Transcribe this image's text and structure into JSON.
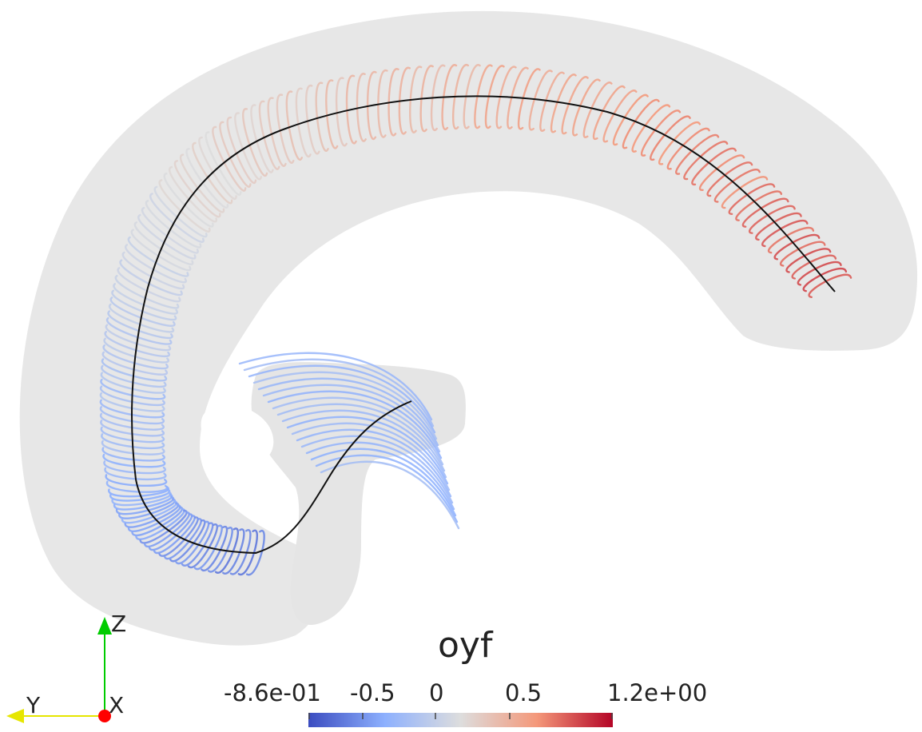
{
  "scalar_bar": {
    "title": "oyf",
    "min_label": "-8.6e-01",
    "max_label": "1.2e+00",
    "ticks": [
      "-0.5",
      "0",
      "0.5"
    ],
    "range": [
      -0.86,
      1.2
    ],
    "colors": [
      "#3b4cc0",
      "#8db0fe",
      "#dddddd",
      "#f4987a",
      "#b40426"
    ]
  },
  "orientation_axes": {
    "z_label": "Z",
    "y_label": "Y",
    "x_label": "X",
    "z_color": "#00cc00",
    "y_color": "#e6e600",
    "x_color": "#ff0000"
  },
  "scene": {
    "surface_color": "#dcdcdc",
    "centerline_color": "#111111"
  }
}
